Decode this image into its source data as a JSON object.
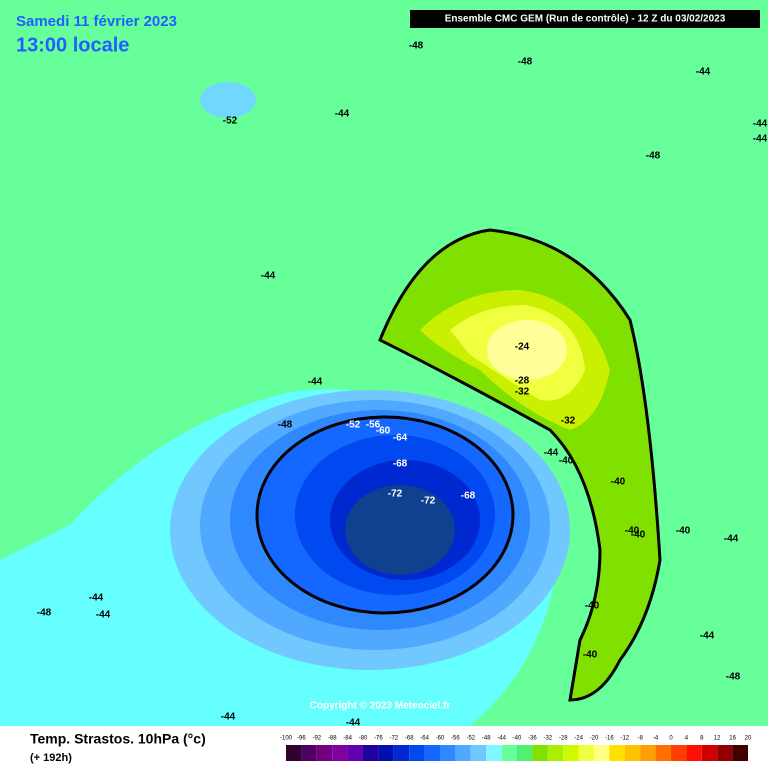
{
  "header": {
    "date": "Samedi 11 février 2023",
    "time": "13:00 locale",
    "run": "Ensemble CMC GEM  (Run de contrôle)  -  12 Z du 03/02/2023"
  },
  "map": {
    "copyright": "Copyright © 2023 Meteociel.fr",
    "contour_labels": [
      -48,
      -48,
      -44,
      -52,
      -44,
      -48,
      -44,
      -44,
      -44,
      -44,
      -48,
      -24,
      -28,
      -32,
      -32,
      -52,
      -56,
      -60,
      -64,
      -68,
      -72,
      -72,
      -68,
      -44,
      -40,
      -40,
      -40,
      -40,
      -40,
      -44,
      -40,
      -40,
      -44,
      -48,
      -48,
      -44,
      -44,
      -44,
      -44
    ]
  },
  "footer": {
    "title": "Temp. Strastos. 10hPa (°c)",
    "lead": "(+ 192h)"
  },
  "legend": {
    "scale": [
      -100,
      -96,
      -92,
      -88,
      -84,
      -80,
      -76,
      -72,
      -68,
      -64,
      -60,
      -56,
      -52,
      -48,
      -44,
      -40,
      -36,
      -32,
      -28,
      -24,
      -20,
      -16,
      -12,
      -8,
      -4,
      0,
      4,
      8,
      12,
      16,
      20
    ],
    "colors": [
      "#300030",
      "#500060",
      "#700080",
      "#8000a0",
      "#6000b0",
      "#2000a0",
      "#0010b0",
      "#0028d0",
      "#0048f0",
      "#1468ff",
      "#3088ff",
      "#50a8ff",
      "#70c8ff",
      "#80f8ff",
      "#66ff99",
      "#50f070",
      "#80e000",
      "#a8f000",
      "#d0f800",
      "#f0ff40",
      "#ffff80",
      "#ffe000",
      "#ffc000",
      "#ffa000",
      "#ff7000",
      "#ff4000",
      "#ff1000",
      "#d00000",
      "#900000",
      "#400000"
    ]
  }
}
